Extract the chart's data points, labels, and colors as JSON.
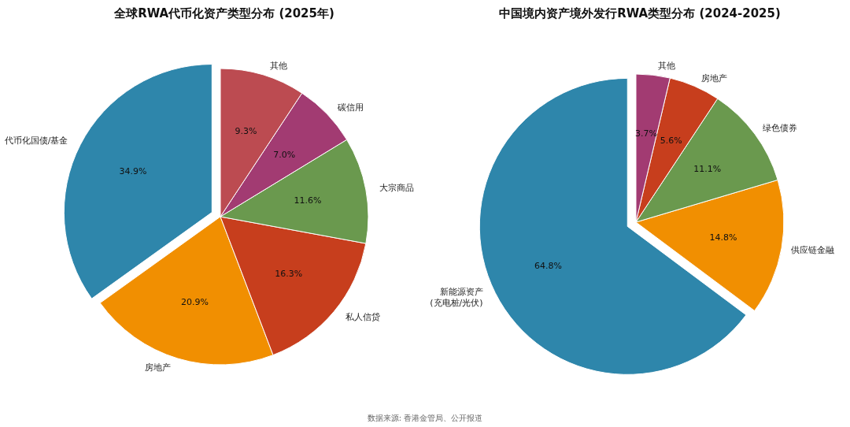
{
  "chart_data": [
    {
      "type": "pie",
      "title": "全球RWA代币化资产类型分布 (2025年)",
      "categories": [
        "代币化国债/基金",
        "房地产",
        "私人信贷",
        "大宗商品",
        "碳信用",
        "其他"
      ],
      "values": [
        34.9,
        20.9,
        16.3,
        11.6,
        7.0,
        9.3
      ],
      "colors": [
        "#2e86ab",
        "#f18f01",
        "#c73e1d",
        "#6a994e",
        "#a23b72",
        "#bc4b51"
      ],
      "value_labels": [
        "34.9%",
        "20.9%",
        "16.3%",
        "11.6%",
        "7.0%",
        "9.3%"
      ],
      "legend": false
    },
    {
      "type": "pie",
      "title": "中国境内资产境外发行RWA类型分布 (2024-2025)",
      "categories": [
        "新能源资产\n(充电桩/光伏)",
        "供应链金融",
        "绿色债券",
        "房地产",
        "其他"
      ],
      "values": [
        64.8,
        14.8,
        11.1,
        5.6,
        3.7
      ],
      "colors": [
        "#2e86ab",
        "#f18f01",
        "#6a994e",
        "#c73e1d",
        "#a23b72"
      ],
      "value_labels": [
        "64.8%",
        "14.8%",
        "11.1%",
        "5.6%",
        "3.7%"
      ],
      "legend": false,
      "annotations": [
        "数据来源: 香港金管局、公开报道"
      ]
    }
  ]
}
